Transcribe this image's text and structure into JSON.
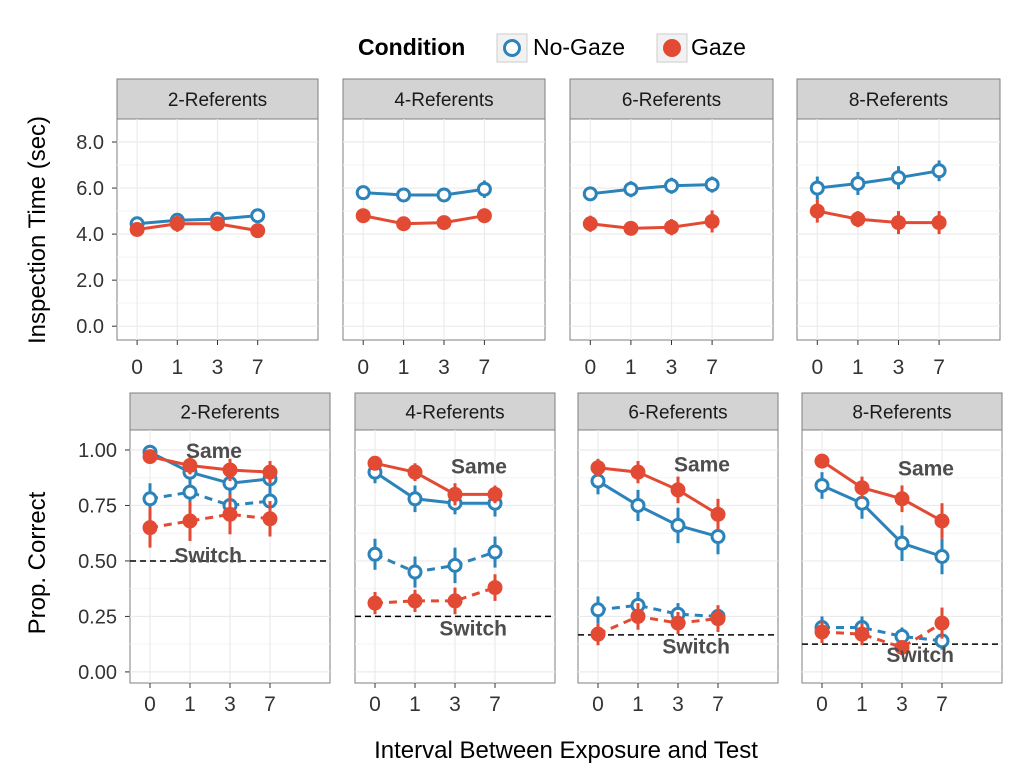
{
  "legend": {
    "title": "Condition",
    "items": [
      {
        "label": "No-Gaze",
        "color": "#2b83ba",
        "marker": "open-circle"
      },
      {
        "label": "Gaze",
        "color": "#e34a33",
        "marker": "filled-circle"
      }
    ]
  },
  "colors": {
    "no_gaze": "#2b83ba",
    "gaze": "#e34a33",
    "strip": "#d3d3d3",
    "grid": "#ebebeb",
    "label_text": "#4d4d4d"
  },
  "xlabel": "Interval Between Exposure and Test",
  "chart_data": [
    {
      "type": "line",
      "ylabel": "Inspection Time (sec)",
      "ylim": [
        -0.6,
        9.0
      ],
      "yticks": [
        "0.0",
        "2.0",
        "4.0",
        "6.0",
        "8.0"
      ],
      "ytick_values": [
        0,
        2,
        4,
        6,
        8
      ],
      "categories": [
        "0",
        "1",
        "3",
        "7"
      ],
      "grid": true,
      "legend_position": "top",
      "panels": [
        {
          "title": "2-Referents",
          "series": [
            {
              "name": "No-Gaze",
              "style": "solid",
              "values": [
                4.45,
                4.6,
                4.65,
                4.8
              ],
              "errors": [
                0.12,
                0.15,
                0.18,
                0.22
              ]
            },
            {
              "name": "Gaze",
              "style": "solid",
              "values": [
                4.2,
                4.45,
                4.45,
                4.15
              ],
              "errors": [
                0.12,
                0.35,
                0.3,
                0.2
              ]
            }
          ]
        },
        {
          "title": "4-Referents",
          "series": [
            {
              "name": "No-Gaze",
              "style": "solid",
              "values": [
                5.8,
                5.7,
                5.7,
                5.95
              ],
              "errors": [
                0.3,
                0.3,
                0.28,
                0.38
              ]
            },
            {
              "name": "Gaze",
              "style": "solid",
              "values": [
                4.8,
                4.45,
                4.5,
                4.8
              ],
              "errors": [
                0.3,
                0.15,
                0.15,
                0.32
              ]
            }
          ]
        },
        {
          "title": "6-Referents",
          "series": [
            {
              "name": "No-Gaze",
              "style": "solid",
              "values": [
                5.75,
                5.95,
                6.1,
                6.15
              ],
              "errors": [
                0.3,
                0.35,
                0.35,
                0.35
              ]
            },
            {
              "name": "Gaze",
              "style": "solid",
              "values": [
                4.45,
                4.25,
                4.3,
                4.55
              ],
              "errors": [
                0.35,
                0.15,
                0.35,
                0.48
              ]
            }
          ]
        },
        {
          "title": "8-Referents",
          "series": [
            {
              "name": "No-Gaze",
              "style": "solid",
              "values": [
                6.0,
                6.2,
                6.45,
                6.75
              ],
              "errors": [
                0.5,
                0.5,
                0.5,
                0.45
              ]
            },
            {
              "name": "Gaze",
              "style": "solid",
              "values": [
                5.0,
                4.65,
                4.5,
                4.5
              ],
              "errors": [
                0.5,
                0.35,
                0.5,
                0.5
              ]
            }
          ]
        }
      ]
    },
    {
      "type": "line",
      "ylabel": "Prop. Correct",
      "ylim": [
        -0.05,
        1.09
      ],
      "yticks": [
        "0.00",
        "0.25",
        "0.50",
        "0.75",
        "1.00"
      ],
      "ytick_values": [
        0,
        0.25,
        0.5,
        0.75,
        1.0
      ],
      "categories": [
        "0",
        "1",
        "3",
        "7"
      ],
      "grid": true,
      "panels": [
        {
          "title": "2-Referents",
          "chance": 0.5,
          "annotations": [
            {
              "text": "Same",
              "x": "3",
              "y": 1.0
            },
            {
              "text": "Switch",
              "x": "3",
              "y": 0.53
            }
          ],
          "series": [
            {
              "name": "No-Gaze",
              "trial": "Same",
              "style": "solid",
              "values": [
                0.99,
                0.9,
                0.85,
                0.87
              ],
              "errors": [
                0.03,
                0.05,
                0.05,
                0.05
              ]
            },
            {
              "name": "Gaze",
              "trial": "Same",
              "style": "solid",
              "values": [
                0.97,
                0.93,
                0.91,
                0.9
              ],
              "errors": [
                0.02,
                0.04,
                0.05,
                0.05
              ]
            },
            {
              "name": "No-Gaze",
              "trial": "Switch",
              "style": "dashed",
              "values": [
                0.78,
                0.81,
                0.75,
                0.77
              ],
              "errors": [
                0.07,
                0.06,
                0.08,
                0.07
              ]
            },
            {
              "name": "Gaze",
              "trial": "Switch",
              "style": "dashed",
              "values": [
                0.65,
                0.68,
                0.71,
                0.69
              ],
              "errors": [
                0.09,
                0.09,
                0.09,
                0.08
              ]
            }
          ]
        },
        {
          "title": "4-Referents",
          "chance": 0.25,
          "annotations": [
            {
              "text": "Same",
              "x": "7",
              "y": 0.93
            },
            {
              "text": "Switch",
              "x": "7",
              "y": 0.2
            }
          ],
          "series": [
            {
              "name": "No-Gaze",
              "trial": "Same",
              "style": "solid",
              "values": [
                0.9,
                0.78,
                0.76,
                0.76
              ],
              "errors": [
                0.05,
                0.06,
                0.05,
                0.06
              ]
            },
            {
              "name": "Gaze",
              "trial": "Same",
              "style": "solid",
              "values": [
                0.94,
                0.9,
                0.8,
                0.8
              ],
              "errors": [
                0.02,
                0.04,
                0.05,
                0.04
              ]
            },
            {
              "name": "No-Gaze",
              "trial": "Switch",
              "style": "dashed",
              "values": [
                0.53,
                0.45,
                0.48,
                0.54
              ],
              "errors": [
                0.07,
                0.07,
                0.08,
                0.07
              ]
            },
            {
              "name": "Gaze",
              "trial": "Switch",
              "style": "dashed",
              "values": [
                0.31,
                0.32,
                0.32,
                0.38
              ],
              "errors": [
                0.05,
                0.05,
                0.06,
                0.06
              ]
            }
          ]
        },
        {
          "title": "6-Referents",
          "chance": 0.1667,
          "annotations": [
            {
              "text": "Same",
              "x": "7",
              "y": 0.94
            },
            {
              "text": "Switch",
              "x": "7",
              "y": 0.12
            }
          ],
          "series": [
            {
              "name": "No-Gaze",
              "trial": "Same",
              "style": "solid",
              "values": [
                0.86,
                0.75,
                0.66,
                0.61
              ],
              "errors": [
                0.06,
                0.07,
                0.08,
                0.08
              ]
            },
            {
              "name": "Gaze",
              "trial": "Same",
              "style": "solid",
              "values": [
                0.92,
                0.9,
                0.82,
                0.71
              ],
              "errors": [
                0.04,
                0.05,
                0.06,
                0.07
              ]
            },
            {
              "name": "No-Gaze",
              "trial": "Switch",
              "style": "dashed",
              "values": [
                0.28,
                0.3,
                0.26,
                0.25
              ],
              "errors": [
                0.06,
                0.06,
                0.05,
                0.05
              ]
            },
            {
              "name": "Gaze",
              "trial": "Switch",
              "style": "dashed",
              "values": [
                0.17,
                0.25,
                0.22,
                0.24
              ],
              "errors": [
                0.05,
                0.06,
                0.05,
                0.06
              ]
            }
          ]
        },
        {
          "title": "8-Referents",
          "chance": 0.125,
          "annotations": [
            {
              "text": "Same",
              "x": "7",
              "y": 0.92
            },
            {
              "text": "Switch",
              "x": "7",
              "y": 0.08
            }
          ],
          "series": [
            {
              "name": "No-Gaze",
              "trial": "Same",
              "style": "solid",
              "values": [
                0.84,
                0.76,
                0.58,
                0.52
              ],
              "errors": [
                0.06,
                0.07,
                0.08,
                0.08
              ]
            },
            {
              "name": "Gaze",
              "trial": "Same",
              "style": "solid",
              "values": [
                0.95,
                0.83,
                0.78,
                0.68
              ],
              "errors": [
                0.02,
                0.05,
                0.06,
                0.08
              ]
            },
            {
              "name": "No-Gaze",
              "trial": "Switch",
              "style": "dashed",
              "values": [
                0.2,
                0.2,
                0.16,
                0.14
              ],
              "errors": [
                0.05,
                0.05,
                0.04,
                0.04
              ]
            },
            {
              "name": "Gaze",
              "trial": "Switch",
              "style": "dashed",
              "values": [
                0.18,
                0.17,
                0.11,
                0.22
              ],
              "errors": [
                0.05,
                0.05,
                0.03,
                0.07
              ]
            }
          ]
        }
      ]
    }
  ]
}
